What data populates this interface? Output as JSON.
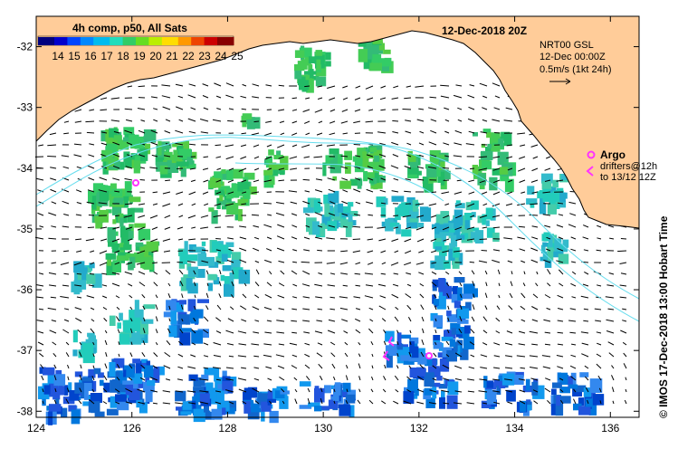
{
  "map": {
    "title": "12-Dec-2018 20Z",
    "colorbar": {
      "label": "4h comp, p50, All Sats",
      "ticks": [
        "14",
        "15",
        "16",
        "17",
        "18",
        "19",
        "20",
        "21",
        "22",
        "23",
        "24",
        "25"
      ],
      "min": 14,
      "max": 25
    },
    "currents_legend": {
      "line1": "NRT00 GSL",
      "line2": "12-Dec 00:00Z",
      "line3": "0.5m/s (1kt 24h)"
    },
    "argo_label": "Argo",
    "drifters_line1": "drifters@12h",
    "drifters_line2": "to 13/12 12Z",
    "credit": "© IMOS 17-Dec-2018 13:00 Hobart Time",
    "x_ticks": [
      "124",
      "126",
      "128",
      "130",
      "132",
      "134",
      "136"
    ],
    "y_ticks": [
      "-32",
      "-33",
      "-34",
      "-35",
      "-36",
      "-37",
      "-38"
    ],
    "lon_range": [
      124,
      136.6
    ],
    "lat_range": [
      -38.1,
      -31.5
    ],
    "colors": {
      "land": "#ffcc99",
      "argo": "#ff33ff",
      "contour": "#66ddee"
    }
  }
}
